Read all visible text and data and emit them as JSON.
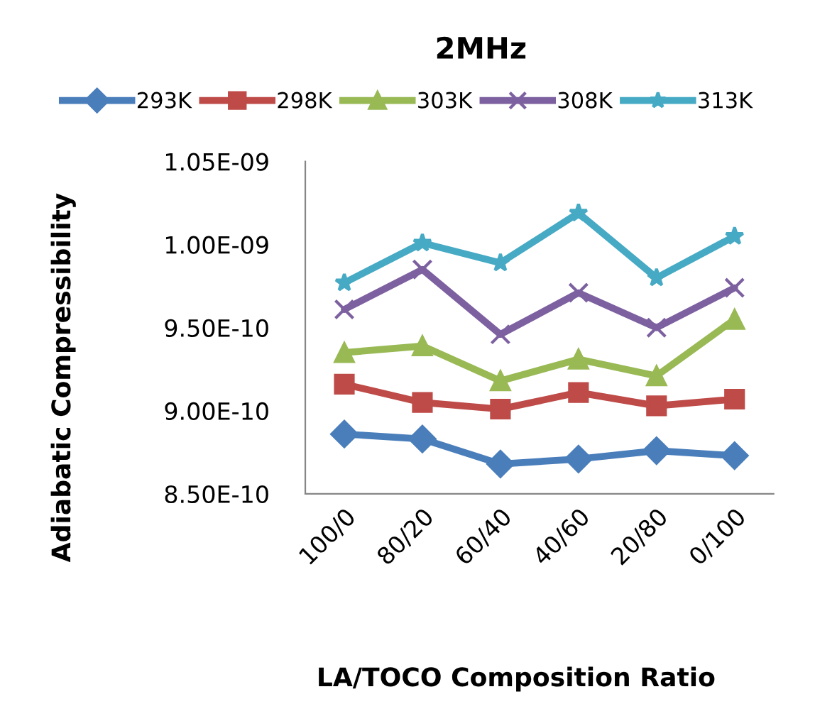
{
  "chart_data": {
    "type": "line",
    "title": "2MHz",
    "xlabel": "LA/TOCO Composition Ratio",
    "ylabel": "Adiabatic Compressibility",
    "categories": [
      "100/0",
      "80/20",
      "60/40",
      "40/60",
      "20/80",
      "0/100"
    ],
    "series": [
      {
        "name": "293K",
        "color": "#4a7ebb",
        "marker": "diamond",
        "values": [
          8.86e-10,
          8.83e-10,
          8.68e-10,
          8.71e-10,
          8.76e-10,
          8.73e-10
        ]
      },
      {
        "name": "298K",
        "color": "#be4b48",
        "marker": "square",
        "values": [
          9.16e-10,
          9.05e-10,
          9.01e-10,
          9.11e-10,
          9.03e-10,
          9.07e-10
        ]
      },
      {
        "name": "303K",
        "color": "#98b954",
        "marker": "triangle",
        "values": [
          9.35e-10,
          9.39e-10,
          9.18e-10,
          9.31e-10,
          9.21e-10,
          9.55e-10
        ]
      },
      {
        "name": "308K",
        "color": "#7d60a0",
        "marker": "cross",
        "values": [
          9.61e-10,
          9.85e-10,
          9.46e-10,
          9.71e-10,
          9.5e-10,
          9.74e-10
        ]
      },
      {
        "name": "313K",
        "color": "#46aac5",
        "marker": "star",
        "values": [
          9.77e-10,
          1.001e-09,
          9.89e-10,
          1.019e-09,
          9.8e-10,
          1.005e-09
        ]
      }
    ],
    "ylim": [
      8.5e-10,
      1.05e-09
    ],
    "yticks": [
      {
        "value": 8.5e-10,
        "label": "8.50E-10"
      },
      {
        "value": 9e-10,
        "label": "9.00E-10"
      },
      {
        "value": 9.5e-10,
        "label": "9.50E-10"
      },
      {
        "value": 1e-09,
        "label": "1.00E-09"
      },
      {
        "value": 1.05e-09,
        "label": "1.05E-09"
      }
    ],
    "grid": false,
    "legend": "top",
    "line_style": "solid"
  }
}
